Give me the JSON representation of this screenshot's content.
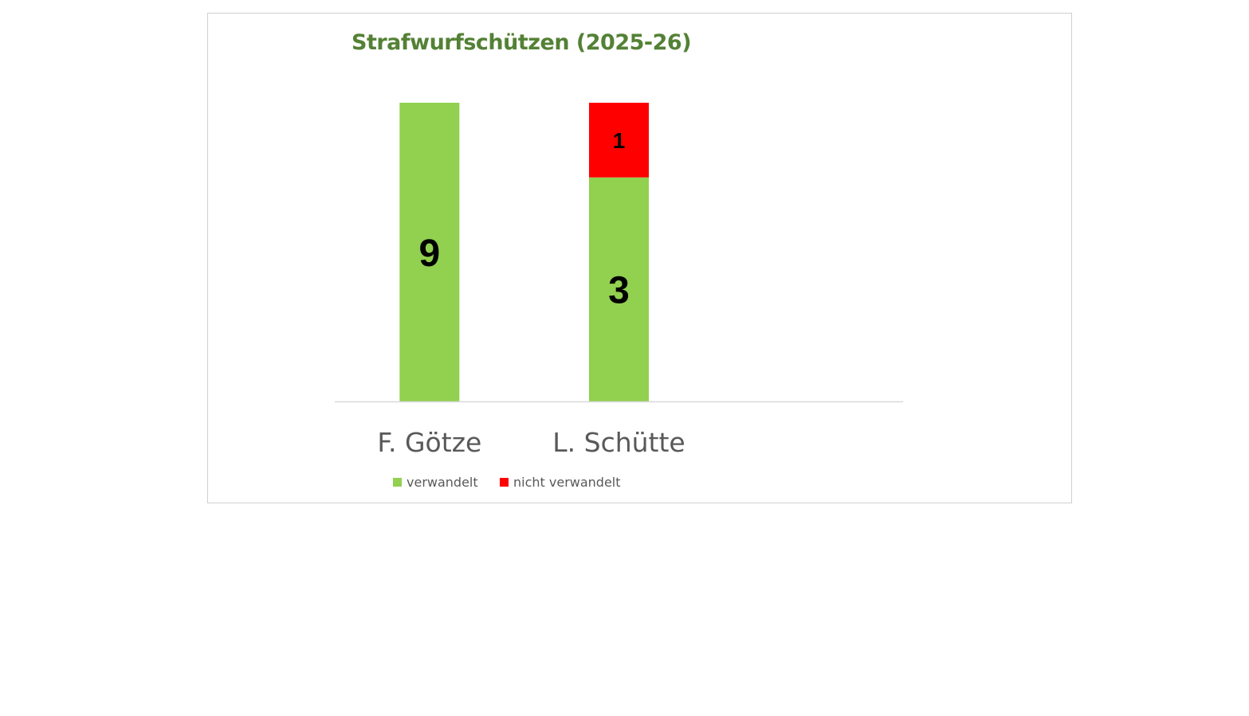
{
  "chart_data": {
    "type": "bar",
    "stacking": "percent",
    "title": "Strafwurfschützen (2025-26)",
    "categories": [
      "F. Götze",
      "L. Schütte"
    ],
    "series": [
      {
        "name": "verwandelt",
        "values": [
          9,
          3
        ],
        "color": "#92D050"
      },
      {
        "name": "nicht verwandelt",
        "values": [
          0,
          1
        ],
        "color": "#FF0000"
      }
    ],
    "ylim": [
      0,
      100
    ],
    "y_axis_visible": false,
    "grid": false,
    "data_labels": true,
    "legend": "bottom",
    "title_color": "#538135"
  }
}
